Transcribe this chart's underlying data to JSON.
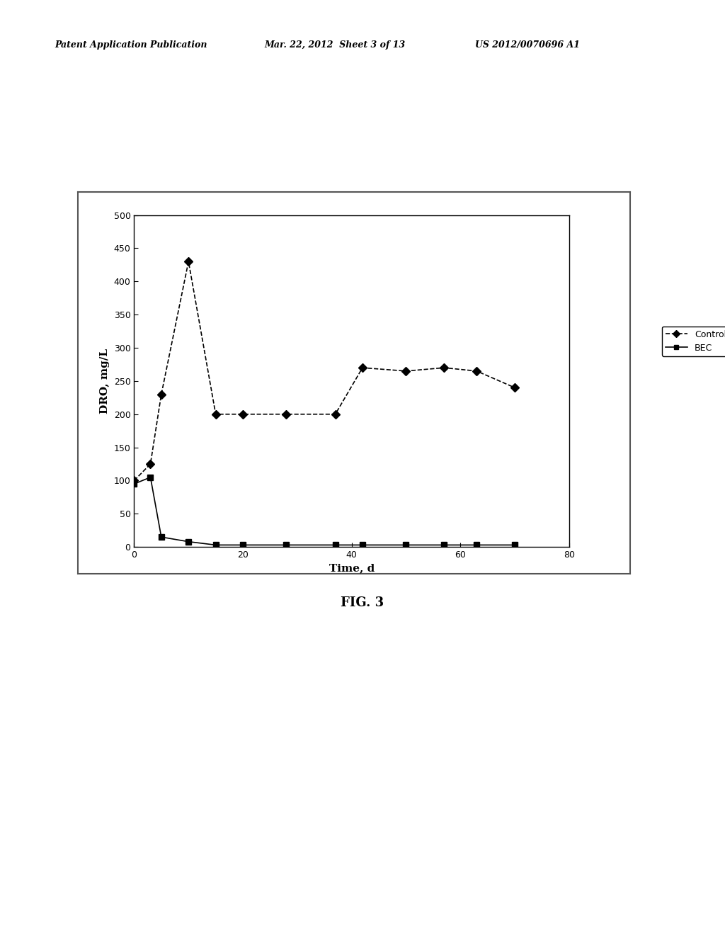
{
  "control_x": [
    0,
    3,
    5,
    10,
    15,
    20,
    28,
    37,
    42,
    50,
    57,
    63,
    70
  ],
  "control_y": [
    100,
    125,
    230,
    430,
    200,
    200,
    200,
    200,
    270,
    265,
    270,
    265,
    240
  ],
  "bec_x": [
    0,
    3,
    5,
    10,
    15,
    20,
    28,
    37,
    42,
    50,
    57,
    63,
    70
  ],
  "bec_y": [
    95,
    105,
    15,
    8,
    3,
    3,
    3,
    3,
    3,
    3,
    3,
    3,
    3
  ],
  "xlabel": "Time, d",
  "ylabel": "DRO, mg/L",
  "xlim": [
    0,
    80
  ],
  "ylim": [
    0,
    500
  ],
  "yticks": [
    0,
    50,
    100,
    150,
    200,
    250,
    300,
    350,
    400,
    450,
    500
  ],
  "xticks": [
    0,
    20,
    40,
    60,
    80
  ],
  "legend_control": "Control",
  "legend_bec": "BEC",
  "header_left": "Patent Application Publication",
  "header_mid": "Mar. 22, 2012  Sheet 3 of 13",
  "header_right": "US 2012/0070696 A1",
  "fig_label": "FIG. 3",
  "background_color": "#ffffff",
  "line_color": "#000000",
  "plot_bg": "#ffffff",
  "outer_box_color": "#555555"
}
